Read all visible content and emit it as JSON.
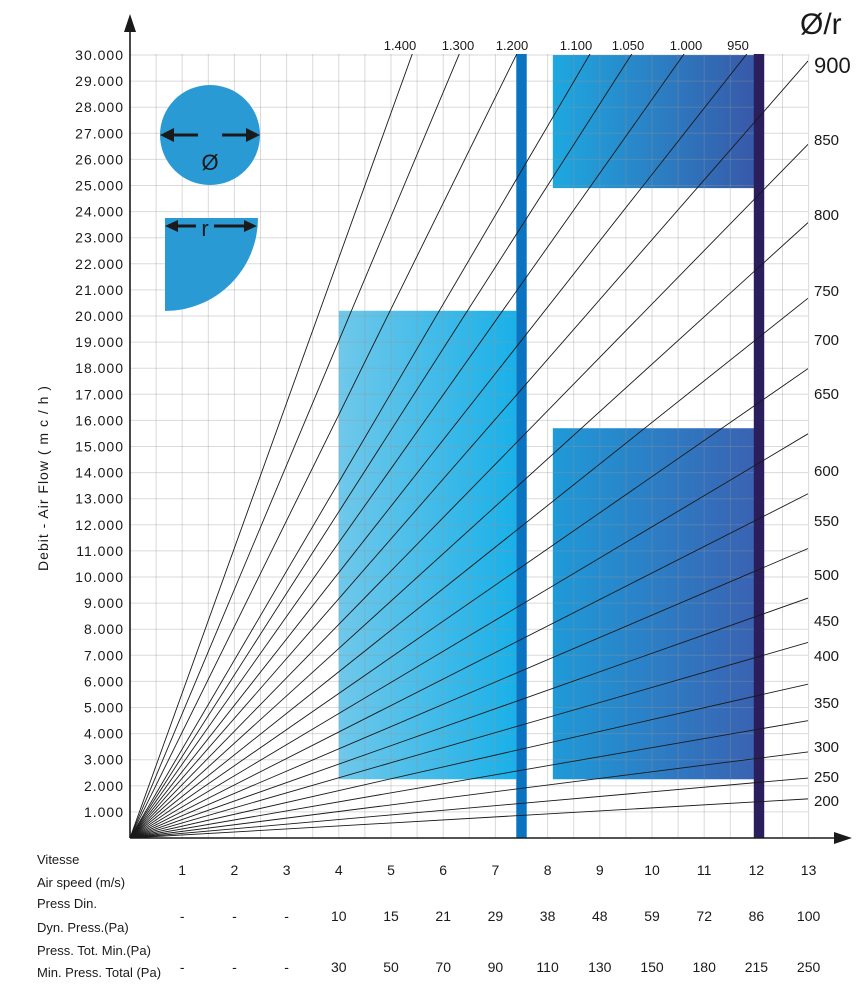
{
  "chart_data": {
    "type": "line",
    "ylabel": "Debit  -  Air  Flow  ( m c / h )",
    "corner_title": "Ø/r",
    "y_ticks": [
      "1.000",
      "2.000",
      "3.000",
      "4.000",
      "5.000",
      "6.000",
      "7.000",
      "8.000",
      "9.000",
      "10.000",
      "11.000",
      "12.000",
      "13.000",
      "14.000",
      "15.000",
      "16.000",
      "17.000",
      "18.000",
      "19.000",
      "20.000",
      "21.000",
      "22.000",
      "23.000",
      "24.000",
      "25.000",
      "26.000",
      "27.000",
      "28.000",
      "29.000",
      "30.000"
    ],
    "x_ticks": [
      "1",
      "2",
      "3",
      "4",
      "5",
      "6",
      "7",
      "8",
      "9",
      "10",
      "11",
      "12",
      "13"
    ],
    "x_range": [
      0,
      13.5
    ],
    "y_range": [
      0,
      30000
    ],
    "grid": true,
    "diameters_top": [
      "1.400",
      "1.300",
      "1.200",
      "1.100",
      "1.050",
      "1.000",
      "950"
    ],
    "diameters_right": [
      "900",
      "850",
      "800",
      "750",
      "700",
      "650",
      "600",
      "550",
      "500",
      "450",
      "400",
      "350",
      "300",
      "250",
      "200"
    ],
    "series": [
      {
        "diameter": 1400,
        "speed_at_30000": 5.4
      },
      {
        "diameter": 1300,
        "speed_at_30000": 6.3
      },
      {
        "diameter": 1200,
        "speed_at_30000": 7.4
      },
      {
        "diameter": 1100,
        "speed_at_30000": 8.8
      },
      {
        "diameter": 1050,
        "speed_at_30000": 9.6
      },
      {
        "diameter": 1000,
        "speed_at_30000": 10.6
      },
      {
        "diameter": 950,
        "speed_at_30000": 11.8
      },
      {
        "diameter": 900,
        "flow_at_speed_13": 29800
      },
      {
        "diameter": 850,
        "flow_at_speed_13": 26600
      },
      {
        "diameter": 800,
        "flow_at_speed_13": 23600
      },
      {
        "diameter": 750,
        "flow_at_speed_13": 20700
      },
      {
        "diameter": 700,
        "flow_at_speed_13": 18000
      },
      {
        "diameter": 650,
        "flow_at_speed_13": 15500
      },
      {
        "diameter": 600,
        "flow_at_speed_13": 13200
      },
      {
        "diameter": 550,
        "flow_at_speed_13": 11100
      },
      {
        "diameter": 500,
        "flow_at_speed_13": 9200
      },
      {
        "diameter": 450,
        "flow_at_speed_13": 7500
      },
      {
        "diameter": 400,
        "flow_at_speed_13": 5900
      },
      {
        "diameter": 350,
        "flow_at_speed_13": 4500
      },
      {
        "diameter": 300,
        "flow_at_speed_13": 3300
      },
      {
        "diameter": 250,
        "flow_at_speed_13": 2300
      },
      {
        "diameter": 200,
        "flow_at_speed_13": 1500
      }
    ],
    "regions": [
      {
        "x": [
          4,
          7.4
        ],
        "y": [
          2250,
          20200
        ],
        "color_from": "#6fc8ea",
        "color_to": "#1ab0e8"
      },
      {
        "x": [
          8.1,
          12
        ],
        "y": [
          2250,
          15700
        ],
        "color_from": "#1f9ad8",
        "color_to": "#3a62b2"
      },
      {
        "x": [
          8.1,
          12
        ],
        "y": [
          24900,
          30000
        ],
        "color_from": "#1ea8e0",
        "color_to": "#3858a8"
      }
    ],
    "vertical_bands": [
      {
        "x": [
          7.4,
          7.6
        ],
        "color": "#0a74c0"
      },
      {
        "x": [
          11.95,
          12.15
        ],
        "color": "#2a1e5c"
      }
    ],
    "table": {
      "speed_label_1": "Vitesse",
      "speed_label_2": "Air speed (m/s)",
      "speed": [
        "1",
        "2",
        "3",
        "4",
        "5",
        "6",
        "7",
        "8",
        "9",
        "10",
        "11",
        "12",
        "13"
      ],
      "dyn_label_1": "Press Din.",
      "dyn_label_2": "Dyn. Press.(Pa)",
      "dyn": [
        "-",
        "-",
        "-",
        "10",
        "15",
        "21",
        "29",
        "38",
        "48",
        "59",
        "72",
        "86",
        "100"
      ],
      "tot_label_1": "Press. Tot. Min.(Pa)",
      "tot_label_2": "Min. Press. Total (Pa)",
      "tot": [
        "-",
        "-",
        "-",
        "30",
        "50",
        "70",
        "90",
        "110",
        "130",
        "150",
        "180",
        "215",
        "250"
      ]
    },
    "icons": {
      "circle_symbol": "Ø",
      "quarter_symbol": "r",
      "color": "#2a9ad4"
    }
  }
}
